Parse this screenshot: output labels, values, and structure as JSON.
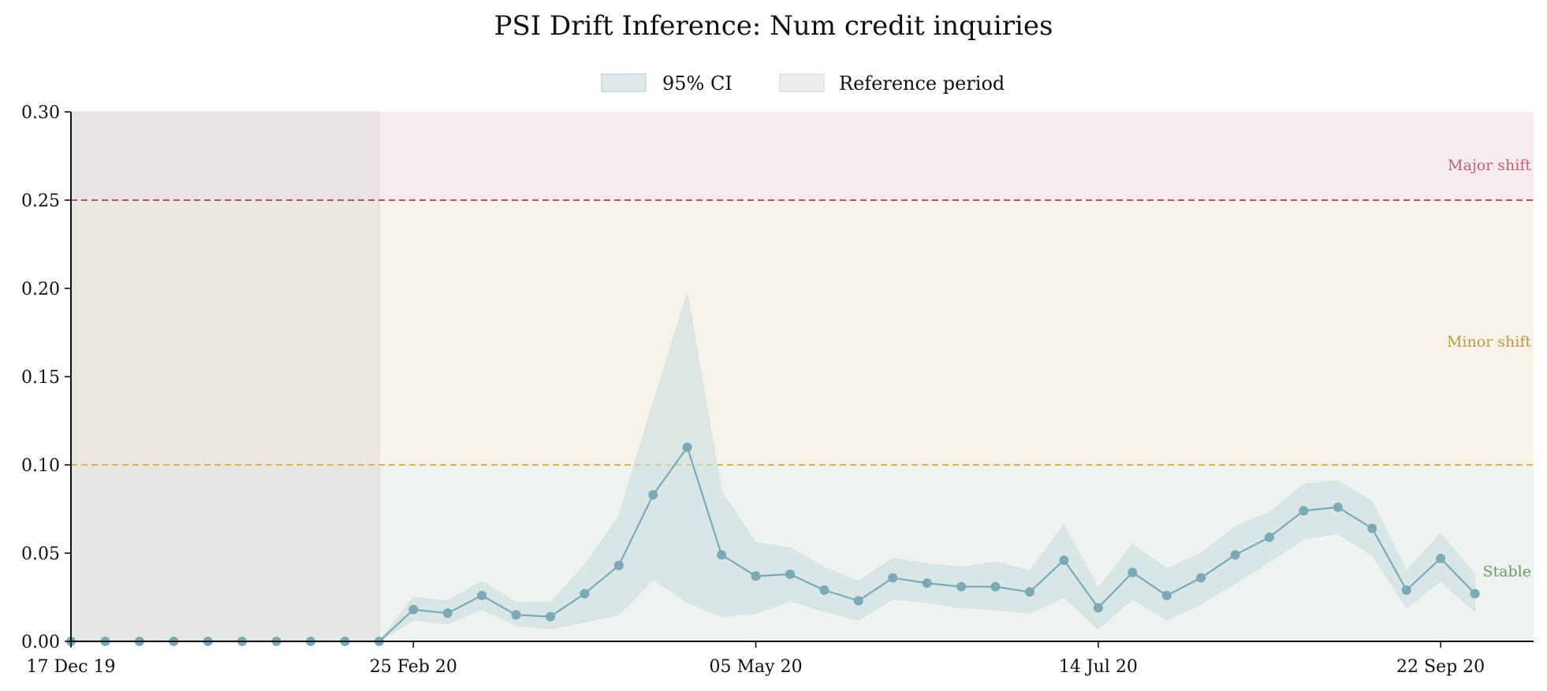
{
  "chart_data": {
    "type": "line",
    "title": "PSI Drift Inference: Num credit inquiries",
    "xlabel": "",
    "ylabel": "",
    "ylim": [
      0,
      0.3
    ],
    "yticks": [
      "0.00",
      "0.05",
      "0.10",
      "0.15",
      "0.20",
      "0.25",
      "0.30"
    ],
    "x_start": "2019-12-17",
    "x_end": "2020-10-11",
    "x_step_days": 7,
    "xticks": [
      {
        "date": "2019-12-17",
        "label": "17 Dec 19"
      },
      {
        "date": "2020-02-25",
        "label": "25 Feb 20"
      },
      {
        "date": "2020-05-05",
        "label": "05 May 20"
      },
      {
        "date": "2020-07-14",
        "label": "14 Jul 20"
      },
      {
        "date": "2020-09-22",
        "label": "22 Sep 20"
      }
    ],
    "reference_period": {
      "start": "2019-12-17",
      "end": "2020-02-18"
    },
    "thresholds": [
      {
        "value": 0.25,
        "color": "#c0506a"
      },
      {
        "value": 0.1,
        "color": "#e8b23a"
      }
    ],
    "zones": [
      {
        "from": 0.25,
        "to": 0.3,
        "label": "Major shift",
        "label_value": 0.27,
        "color": "#f7ebee",
        "text_color": "#c0607a"
      },
      {
        "from": 0.1,
        "to": 0.25,
        "label": "Minor shift",
        "label_value": 0.17,
        "color": "#f8f3e9",
        "text_color": "#b89a45"
      },
      {
        "from": 0.0,
        "to": 0.1,
        "label": "Stable",
        "label_value": 0.04,
        "color": "#eef3ef",
        "text_color": "#6a9a72"
      }
    ],
    "series": [
      {
        "color": "#7aaab7",
        "ci_color": "#c9dde0",
        "values": [
          0.0,
          0.0,
          0.0,
          0.0,
          0.0,
          0.0,
          0.0,
          0.0,
          0.0,
          0.0,
          0.018,
          0.016,
          0.026,
          0.015,
          0.014,
          0.027,
          0.043,
          0.083,
          0.11,
          0.049,
          0.037,
          0.038,
          0.029,
          0.023,
          0.036,
          0.033,
          0.031,
          0.031,
          0.028,
          0.046,
          0.019,
          0.039,
          0.026,
          0.036,
          0.049,
          0.059,
          0.074,
          0.076,
          0.064,
          0.029,
          0.047,
          0.027
        ],
        "ci_lower": [
          0.0,
          0.0,
          0.0,
          0.0,
          0.0,
          0.0,
          0.0,
          0.0,
          0.0,
          0.0,
          0.012,
          0.01,
          0.018,
          0.009,
          0.007,
          0.011,
          0.015,
          0.035,
          0.022,
          0.014,
          0.016,
          0.023,
          0.017,
          0.012,
          0.024,
          0.022,
          0.019,
          0.018,
          0.016,
          0.025,
          0.007,
          0.024,
          0.012,
          0.021,
          0.033,
          0.045,
          0.058,
          0.061,
          0.049,
          0.019,
          0.034,
          0.017
        ],
        "ci_upper": [
          0.0,
          0.0,
          0.0,
          0.0,
          0.0,
          0.0,
          0.0,
          0.0,
          0.0,
          0.0,
          0.025,
          0.023,
          0.034,
          0.022,
          0.022,
          0.043,
          0.071,
          0.135,
          0.197,
          0.085,
          0.056,
          0.053,
          0.042,
          0.034,
          0.047,
          0.044,
          0.042,
          0.045,
          0.04,
          0.066,
          0.03,
          0.055,
          0.041,
          0.05,
          0.065,
          0.073,
          0.089,
          0.091,
          0.079,
          0.04,
          0.061,
          0.038
        ]
      }
    ],
    "legend": {
      "position": "top-center",
      "items": [
        {
          "label": "95% CI",
          "color": "#dce8ea",
          "stroke": "#c4d8dc"
        },
        {
          "label": "Reference period",
          "color": "#eeeeee",
          "stroke": "#dddddd"
        }
      ]
    },
    "grid": false
  }
}
